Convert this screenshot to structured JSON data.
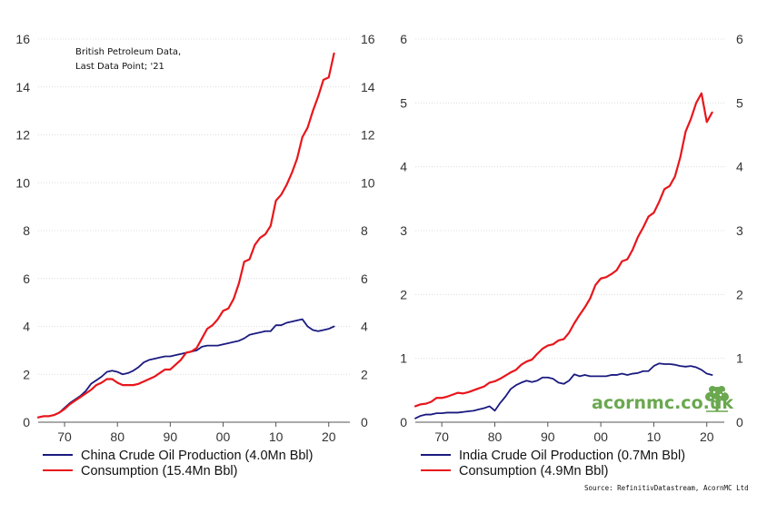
{
  "chart_data": [
    {
      "type": "line",
      "x": [
        1965,
        1966,
        1967,
        1968,
        1969,
        1970,
        1971,
        1972,
        1973,
        1974,
        1975,
        1976,
        1977,
        1978,
        1979,
        1980,
        1981,
        1982,
        1983,
        1984,
        1985,
        1986,
        1987,
        1988,
        1989,
        1990,
        1991,
        1992,
        1993,
        1994,
        1995,
        1996,
        1997,
        1998,
        1999,
        2000,
        2001,
        2002,
        2003,
        2004,
        2005,
        2006,
        2007,
        2008,
        2009,
        2010,
        2011,
        2012,
        2013,
        2014,
        2015,
        2016,
        2017,
        2018,
        2019,
        2020,
        2021
      ],
      "series": [
        {
          "name": "China Crude Oil Production (4.0Mn Bbl)",
          "color": "#1a1a80",
          "values": [
            0.2,
            0.25,
            0.25,
            0.3,
            0.4,
            0.6,
            0.8,
            0.95,
            1.1,
            1.3,
            1.6,
            1.75,
            1.9,
            2.1,
            2.15,
            2.1,
            2.0,
            2.05,
            2.15,
            2.3,
            2.5,
            2.6,
            2.65,
            2.7,
            2.75,
            2.75,
            2.8,
            2.85,
            2.9,
            2.95,
            3.0,
            3.15,
            3.2,
            3.2,
            3.2,
            3.25,
            3.3,
            3.35,
            3.4,
            3.5,
            3.65,
            3.7,
            3.75,
            3.8,
            3.8,
            4.05,
            4.05,
            4.15,
            4.2,
            4.25,
            4.3,
            4.0,
            3.85,
            3.8,
            3.85,
            3.9,
            4.0
          ]
        },
        {
          "name": "Consumption (15.4Mn Bbl)",
          "color": "#e8161b",
          "values": [
            0.2,
            0.25,
            0.25,
            0.3,
            0.4,
            0.55,
            0.75,
            0.9,
            1.05,
            1.2,
            1.35,
            1.55,
            1.65,
            1.8,
            1.8,
            1.65,
            1.55,
            1.55,
            1.55,
            1.6,
            1.7,
            1.8,
            1.9,
            2.05,
            2.2,
            2.2,
            2.4,
            2.6,
            2.9,
            2.95,
            3.1,
            3.5,
            3.9,
            4.05,
            4.3,
            4.65,
            4.75,
            5.15,
            5.8,
            6.7,
            6.8,
            7.4,
            7.7,
            7.85,
            8.2,
            9.25,
            9.5,
            9.9,
            10.4,
            11.0,
            11.9,
            12.3,
            13.0,
            13.6,
            14.3,
            14.4,
            15.4
          ]
        }
      ],
      "ylim": [
        0,
        16
      ],
      "yticks": [
        0,
        2,
        4,
        6,
        8,
        10,
        12,
        14,
        16
      ],
      "xlim": [
        1965,
        2024
      ],
      "xticks": [
        1970,
        1980,
        1990,
        2000,
        2010,
        2020
      ],
      "xticklabels": [
        "70",
        "80",
        "90",
        "00",
        "10",
        "20"
      ],
      "annotation": [
        "British Petroleum Data,",
        "Last Data Point; '21"
      ],
      "grid": true,
      "legend_position": "bottom"
    },
    {
      "type": "line",
      "x": [
        1965,
        1966,
        1967,
        1968,
        1969,
        1970,
        1971,
        1972,
        1973,
        1974,
        1975,
        1976,
        1977,
        1978,
        1979,
        1980,
        1981,
        1982,
        1983,
        1984,
        1985,
        1986,
        1987,
        1988,
        1989,
        1990,
        1991,
        1992,
        1993,
        1994,
        1995,
        1996,
        1997,
        1998,
        1999,
        2000,
        2001,
        2002,
        2003,
        2004,
        2005,
        2006,
        2007,
        2008,
        2009,
        2010,
        2011,
        2012,
        2013,
        2014,
        2015,
        2016,
        2017,
        2018,
        2019,
        2020,
        2021
      ],
      "series": [
        {
          "name": "India Crude Oil Production (0.7Mn Bbl)",
          "color": "#1a1a80",
          "values": [
            0.06,
            0.1,
            0.12,
            0.12,
            0.14,
            0.14,
            0.15,
            0.15,
            0.15,
            0.16,
            0.17,
            0.18,
            0.2,
            0.22,
            0.25,
            0.18,
            0.3,
            0.4,
            0.52,
            0.58,
            0.62,
            0.65,
            0.63,
            0.65,
            0.7,
            0.7,
            0.68,
            0.62,
            0.6,
            0.65,
            0.75,
            0.72,
            0.74,
            0.72,
            0.72,
            0.72,
            0.72,
            0.74,
            0.74,
            0.76,
            0.74,
            0.76,
            0.77,
            0.8,
            0.8,
            0.88,
            0.92,
            0.91,
            0.91,
            0.9,
            0.88,
            0.87,
            0.88,
            0.86,
            0.82,
            0.76,
            0.74
          ]
        },
        {
          "name": "Consumption (4.9Mn Bbl)",
          "color": "#e8161b",
          "values": [
            0.25,
            0.28,
            0.29,
            0.32,
            0.38,
            0.38,
            0.4,
            0.43,
            0.46,
            0.45,
            0.47,
            0.5,
            0.53,
            0.56,
            0.62,
            0.64,
            0.68,
            0.73,
            0.78,
            0.82,
            0.9,
            0.95,
            0.98,
            1.07,
            1.15,
            1.2,
            1.22,
            1.28,
            1.3,
            1.4,
            1.55,
            1.68,
            1.8,
            1.94,
            2.15,
            2.25,
            2.27,
            2.32,
            2.38,
            2.52,
            2.55,
            2.7,
            2.9,
            3.05,
            3.22,
            3.28,
            3.45,
            3.65,
            3.7,
            3.85,
            4.15,
            4.55,
            4.75,
            5.0,
            5.15,
            4.7,
            4.85
          ]
        }
      ],
      "ylim": [
        0,
        6
      ],
      "yticks": [
        0,
        1,
        2,
        3,
        4,
        5,
        6
      ],
      "xlim": [
        1965,
        2023.3
      ],
      "xticks": [
        1970,
        1980,
        1990,
        2000,
        2010,
        2020
      ],
      "xticklabels": [
        "70",
        "80",
        "90",
        "00",
        "10",
        "20"
      ],
      "grid": true,
      "legend_position": "bottom"
    }
  ],
  "brand": {
    "text": "acornmc.co.uk",
    "icon": "tree-icon",
    "color": "#6aa84f"
  },
  "source": "Source: RefinitivDatastream, AcornMC Ltd"
}
